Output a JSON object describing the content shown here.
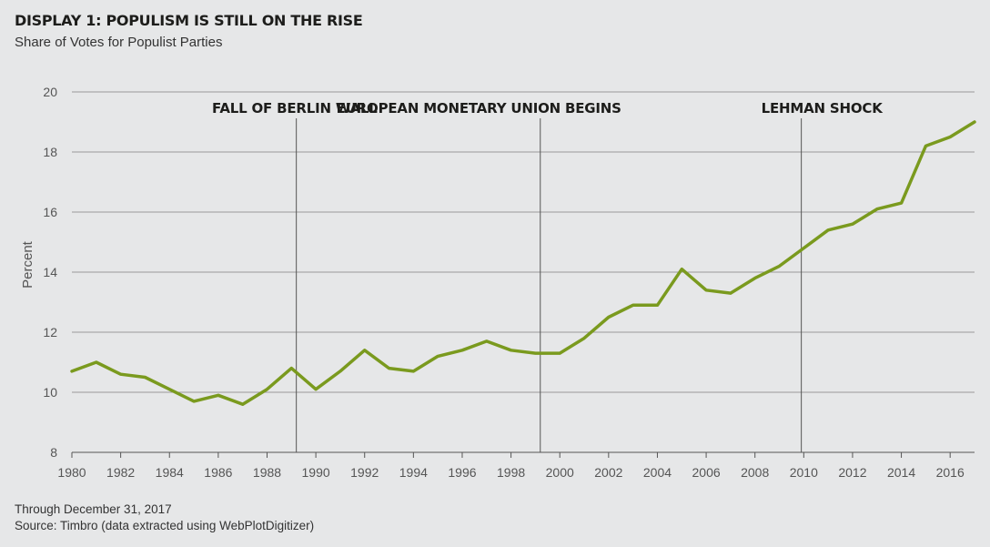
{
  "header": {
    "title": "DISPLAY 1: POPULISM IS STILL ON THE RISE",
    "subtitle": "Share of Votes for Populist Parties"
  },
  "footer": {
    "note": "Through December 31, 2017",
    "source": "Source: Timbro (data extracted using WebPlotDigitizer)"
  },
  "chart_data": {
    "type": "line",
    "title": "DISPLAY 1: POPULISM IS STILL ON THE RISE",
    "subtitle": "Share of Votes for Populist Parties",
    "xlabel": "",
    "ylabel": "Percent",
    "xlim": [
      1980,
      2017
    ],
    "ylim": [
      8,
      20
    ],
    "x_ticks": [
      1980,
      1982,
      1984,
      1986,
      1988,
      1990,
      1992,
      1994,
      1996,
      1998,
      2000,
      2002,
      2004,
      2006,
      2008,
      2010,
      2012,
      2014,
      2016
    ],
    "y_ticks": [
      8,
      10,
      12,
      14,
      16,
      18,
      20
    ],
    "grid": "horizontal",
    "line_color": "#7a9a1e",
    "series": [
      {
        "x": [
          1980,
          1981,
          1982,
          1983,
          1984,
          1985,
          1986,
          1987,
          1988,
          1989,
          1990,
          1991,
          1992,
          1993,
          1994,
          1995,
          1996,
          1997,
          1998,
          1999,
          2000,
          2001,
          2002,
          2003,
          2004,
          2005,
          2006,
          2007,
          2008,
          2009,
          2010,
          2011,
          2012,
          2013,
          2014,
          2015,
          2016,
          2017
        ],
        "values": [
          10.7,
          11.0,
          10.6,
          10.5,
          10.1,
          9.7,
          9.9,
          9.6,
          10.1,
          10.8,
          10.1,
          10.7,
          11.4,
          10.8,
          10.7,
          11.2,
          11.4,
          11.7,
          11.4,
          11.3,
          11.3,
          11.8,
          12.5,
          12.9,
          12.9,
          14.1,
          13.4,
          13.3,
          13.8,
          14.2,
          14.8,
          15.4,
          15.6,
          16.1,
          16.3,
          18.2,
          18.5,
          19.0
        ]
      }
    ],
    "annotations": [
      {
        "label": "FALL OF BERLIN WALL",
        "x": 1989.2
      },
      {
        "label": "EUROPEAN MONETARY UNION BEGINS",
        "x": 1999.2
      },
      {
        "label": "LEHMAN SHOCK",
        "x": 2009.9
      }
    ]
  }
}
